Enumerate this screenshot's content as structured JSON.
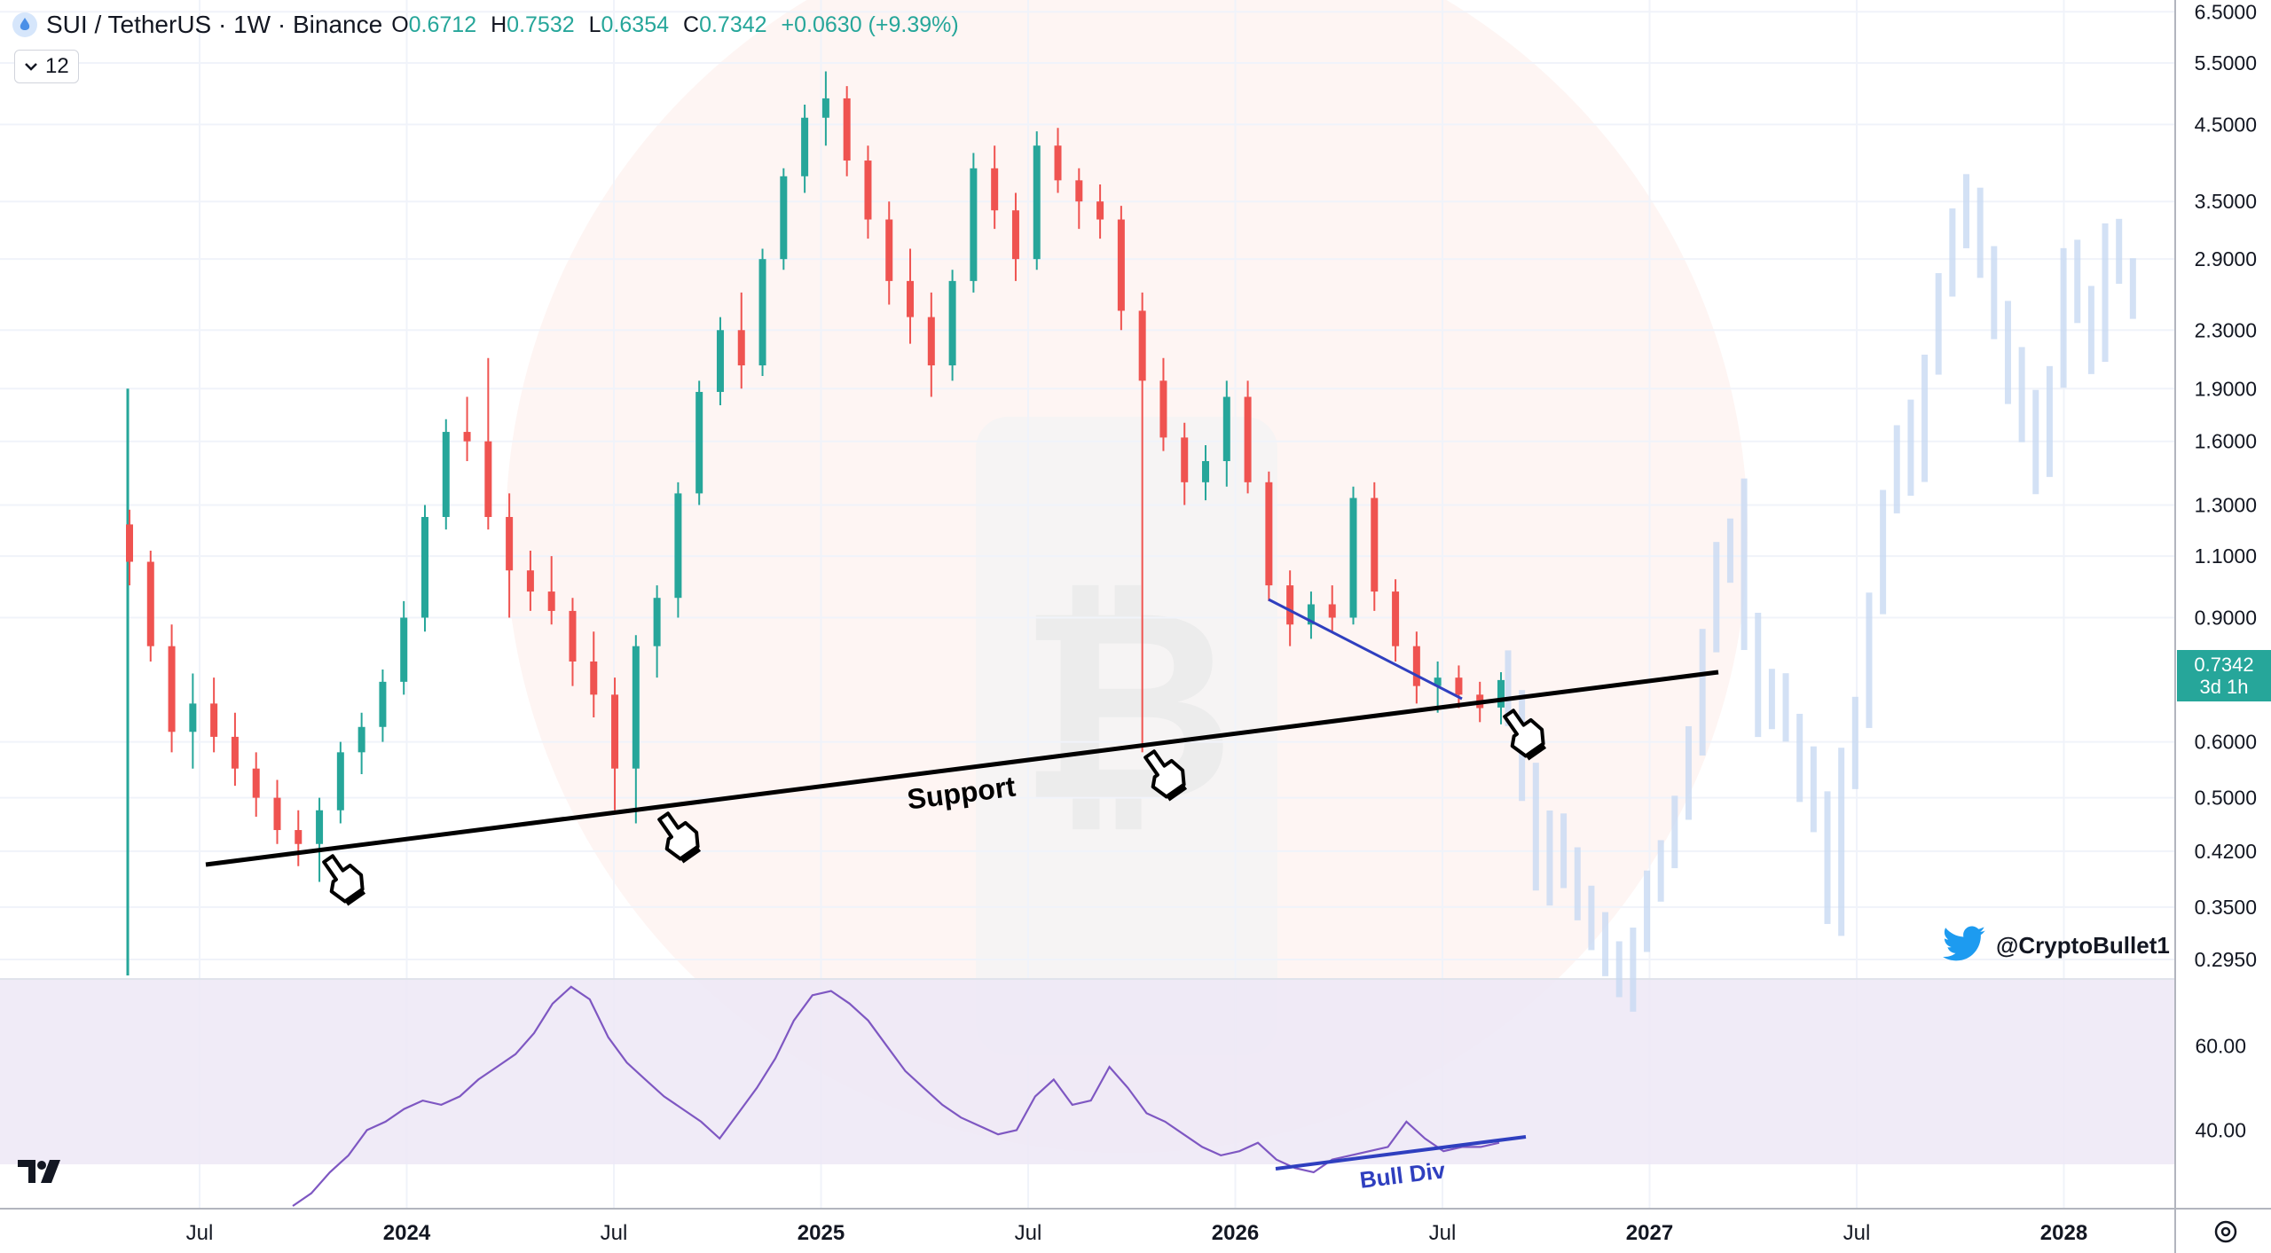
{
  "header": {
    "symbol": "SUI / TetherUS · 1W · Binance",
    "o_label": "O",
    "o_value": "0.6712",
    "h_label": "H",
    "h_value": "0.7532",
    "l_label": "L",
    "l_value": "0.6354",
    "c_label": "C",
    "c_value": "0.7342",
    "change": "+0.0630 (+9.39%)"
  },
  "interval_selector": {
    "value": "12"
  },
  "price_tag": {
    "price": "0.7342",
    "countdown": "3d 1h"
  },
  "watermark": {
    "handle": "@CryptoBullet1"
  },
  "annotations": {
    "support": "Support",
    "bull_div": "Bull Div"
  },
  "price_axis": [
    "6.5000",
    "5.5000",
    "4.5000",
    "3.5000",
    "2.9000",
    "2.3000",
    "1.9000",
    "1.6000",
    "1.3000",
    "1.1000",
    "0.9000",
    "0.7342",
    "0.6000",
    "0.5000",
    "0.4200",
    "0.3500",
    "0.2950"
  ],
  "rsi_axis": [
    "60.00",
    "40.00"
  ],
  "time_axis": [
    {
      "label": "Jul",
      "bold": false
    },
    {
      "label": "2024",
      "bold": true
    },
    {
      "label": "Jul",
      "bold": false
    },
    {
      "label": "2025",
      "bold": true
    },
    {
      "label": "Jul",
      "bold": false
    },
    {
      "label": "2026",
      "bold": true
    },
    {
      "label": "Jul",
      "bold": false
    },
    {
      "label": "2027",
      "bold": true
    },
    {
      "label": "Jul",
      "bold": false
    },
    {
      "label": "2028",
      "bold": true
    }
  ],
  "colors": {
    "up": "#26a69a",
    "down": "#ef5350",
    "rsi": "#7e57c2",
    "support": "#000000",
    "divergence": "#3b4fbf",
    "projection": "#c8d9f2"
  },
  "icons": [
    "sui-coin-icon",
    "chevron-down-icon",
    "twitter-bird-icon",
    "tradingview-logo-icon",
    "settings-icon",
    "pointing-hand-icon"
  ],
  "chart_data": {
    "type": "candlestick",
    "scale": "log",
    "y_range": [
      0.28,
      6.6
    ],
    "grid": true,
    "series": [
      {
        "name": "SUI / TetherUS",
        "candles": [
          [
            1.22,
            1.28,
            1.0,
            1.08
          ],
          [
            1.08,
            1.12,
            0.78,
            0.82
          ],
          [
            0.82,
            0.88,
            0.58,
            0.62
          ],
          [
            0.62,
            0.75,
            0.55,
            0.68
          ],
          [
            0.68,
            0.74,
            0.58,
            0.61
          ],
          [
            0.61,
            0.66,
            0.52,
            0.55
          ],
          [
            0.55,
            0.58,
            0.47,
            0.5
          ],
          [
            0.5,
            0.53,
            0.43,
            0.45
          ],
          [
            0.45,
            0.48,
            0.4,
            0.43
          ],
          [
            0.43,
            0.5,
            0.38,
            0.48
          ],
          [
            0.48,
            0.6,
            0.46,
            0.58
          ],
          [
            0.58,
            0.66,
            0.54,
            0.63
          ],
          [
            0.63,
            0.76,
            0.6,
            0.73
          ],
          [
            0.73,
            0.95,
            0.7,
            0.9
          ],
          [
            0.9,
            1.3,
            0.86,
            1.25
          ],
          [
            1.25,
            1.72,
            1.2,
            1.65
          ],
          [
            1.65,
            1.85,
            1.5,
            1.6
          ],
          [
            1.6,
            2.1,
            1.2,
            1.25
          ],
          [
            1.25,
            1.35,
            0.9,
            1.05
          ],
          [
            1.05,
            1.12,
            0.92,
            0.98
          ],
          [
            0.98,
            1.1,
            0.88,
            0.92
          ],
          [
            0.92,
            0.96,
            0.72,
            0.78
          ],
          [
            0.78,
            0.86,
            0.65,
            0.7
          ],
          [
            0.7,
            0.74,
            0.48,
            0.55
          ],
          [
            0.55,
            0.85,
            0.46,
            0.82
          ],
          [
            0.82,
            1.0,
            0.74,
            0.96
          ],
          [
            0.96,
            1.4,
            0.9,
            1.35
          ],
          [
            1.35,
            1.95,
            1.3,
            1.88
          ],
          [
            1.88,
            2.4,
            1.8,
            2.3
          ],
          [
            2.3,
            2.6,
            1.9,
            2.05
          ],
          [
            2.05,
            3.0,
            1.98,
            2.9
          ],
          [
            2.9,
            3.9,
            2.8,
            3.8
          ],
          [
            3.8,
            4.8,
            3.6,
            4.6
          ],
          [
            4.6,
            5.35,
            4.2,
            4.9
          ],
          [
            4.9,
            5.1,
            3.8,
            4.0
          ],
          [
            4.0,
            4.2,
            3.1,
            3.3
          ],
          [
            3.3,
            3.5,
            2.5,
            2.7
          ],
          [
            2.7,
            3.0,
            2.2,
            2.4
          ],
          [
            2.4,
            2.6,
            1.85,
            2.05
          ],
          [
            2.05,
            2.8,
            1.95,
            2.7
          ],
          [
            2.7,
            4.1,
            2.6,
            3.9
          ],
          [
            3.9,
            4.2,
            3.2,
            3.4
          ],
          [
            3.4,
            3.6,
            2.7,
            2.9
          ],
          [
            2.9,
            4.4,
            2.8,
            4.2
          ],
          [
            4.2,
            4.45,
            3.6,
            3.75
          ],
          [
            3.75,
            3.9,
            3.2,
            3.5
          ],
          [
            3.5,
            3.7,
            3.1,
            3.3
          ],
          [
            3.3,
            3.45,
            2.3,
            2.45
          ],
          [
            2.45,
            2.6,
            0.58,
            1.95
          ],
          [
            1.95,
            2.1,
            1.55,
            1.62
          ],
          [
            1.62,
            1.7,
            1.3,
            1.4
          ],
          [
            1.4,
            1.58,
            1.32,
            1.5
          ],
          [
            1.5,
            1.95,
            1.38,
            1.85
          ],
          [
            1.85,
            1.95,
            1.35,
            1.4
          ],
          [
            1.4,
            1.45,
            0.95,
            1.0
          ],
          [
            1.0,
            1.05,
            0.82,
            0.88
          ],
          [
            0.88,
            0.98,
            0.84,
            0.94
          ],
          [
            0.94,
            1.0,
            0.86,
            0.9
          ],
          [
            0.9,
            1.38,
            0.88,
            1.33
          ],
          [
            1.33,
            1.4,
            0.92,
            0.98
          ],
          [
            0.98,
            1.02,
            0.78,
            0.82
          ],
          [
            0.82,
            0.86,
            0.68,
            0.72
          ],
          [
            0.72,
            0.78,
            0.66,
            0.74
          ],
          [
            0.74,
            0.77,
            0.67,
            0.7
          ],
          [
            0.7,
            0.73,
            0.64,
            0.67
          ],
          [
            0.6712,
            0.7532,
            0.6354,
            0.7342
          ]
        ]
      },
      {
        "name": "RSI",
        "range": [
          22,
          75
        ],
        "values": [
          22,
          25,
          30,
          34,
          40,
          42,
          45,
          47,
          46,
          48,
          52,
          55,
          58,
          63,
          70,
          74,
          71,
          62,
          56,
          52,
          48,
          45,
          42,
          38,
          44,
          50,
          57,
          66,
          72,
          73,
          70,
          66,
          60,
          54,
          50,
          46,
          43,
          41,
          39,
          40,
          48,
          52,
          46,
          47,
          55,
          50,
          44,
          42,
          39,
          36,
          34,
          35,
          37,
          33,
          31,
          30,
          33,
          34,
          35,
          36,
          42,
          38,
          35,
          36,
          36,
          37
        ]
      }
    ],
    "annotations": [
      "Support",
      "Bull Div"
    ]
  }
}
